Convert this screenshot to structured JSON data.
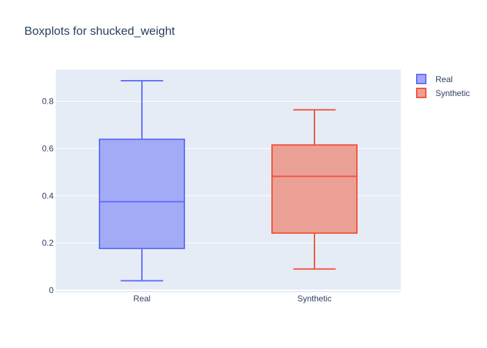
{
  "chart_data": {
    "type": "box",
    "title": "Boxplots for shucked_weight",
    "xlabel": "",
    "ylabel": "",
    "categories": [
      "Real",
      "Synthetic"
    ],
    "ylim": [
      0,
      0.92
    ],
    "yticks": [
      0,
      0.2,
      0.4,
      0.6,
      0.8
    ],
    "ytick_labels": [
      "0",
      "0.2",
      "0.4",
      "0.6",
      "0.8"
    ],
    "grid": true,
    "legend_position": "top-right",
    "series": [
      {
        "name": "Real",
        "color": "#636efa",
        "fill": "#a3aaf6",
        "min": 0.04,
        "q1": 0.177,
        "median": 0.375,
        "q3": 0.639,
        "max": 0.887
      },
      {
        "name": "Synthetic",
        "color": "#ef553b",
        "fill": "#eba095",
        "min": 0.09,
        "q1": 0.242,
        "median": 0.482,
        "q3": 0.615,
        "max": 0.764
      }
    ]
  }
}
